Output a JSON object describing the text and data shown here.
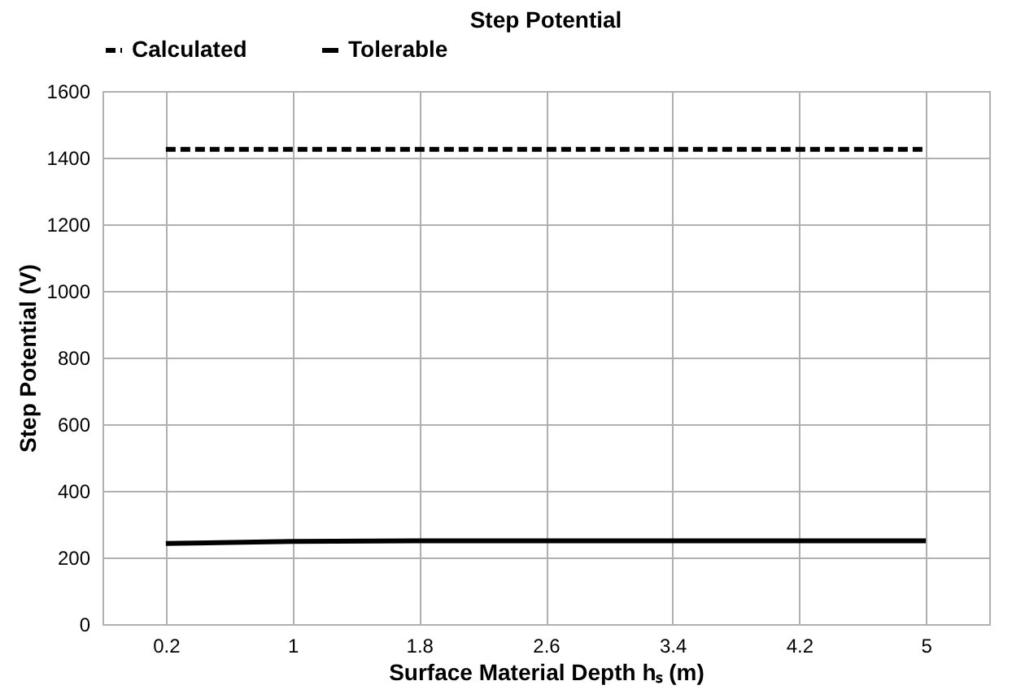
{
  "chart_data": {
    "type": "line",
    "title": "Step Potential",
    "xlabel": "Surface Material Depth hₛ (m)",
    "ylabel": "Step Potential (V)",
    "categories": [
      "0.2",
      "1",
      "1.8",
      "2.6",
      "3.4",
      "4.2",
      "5"
    ],
    "series": [
      {
        "name": "Calculated",
        "color": "#000000",
        "line_style": "dashed",
        "values": [
          1425,
          1425,
          1425,
          1425,
          1425,
          1425,
          1425
        ]
      },
      {
        "name": "Tolerable",
        "color": "#000000",
        "line_style": "solid",
        "values": [
          242,
          248,
          250,
          250,
          250,
          250,
          250
        ]
      }
    ],
    "ylim": [
      0,
      1600
    ],
    "yticks": [
      0,
      200,
      400,
      600,
      800,
      1000,
      1200,
      1400,
      1600
    ],
    "grid": true,
    "legend": "top",
    "marker": "none"
  }
}
